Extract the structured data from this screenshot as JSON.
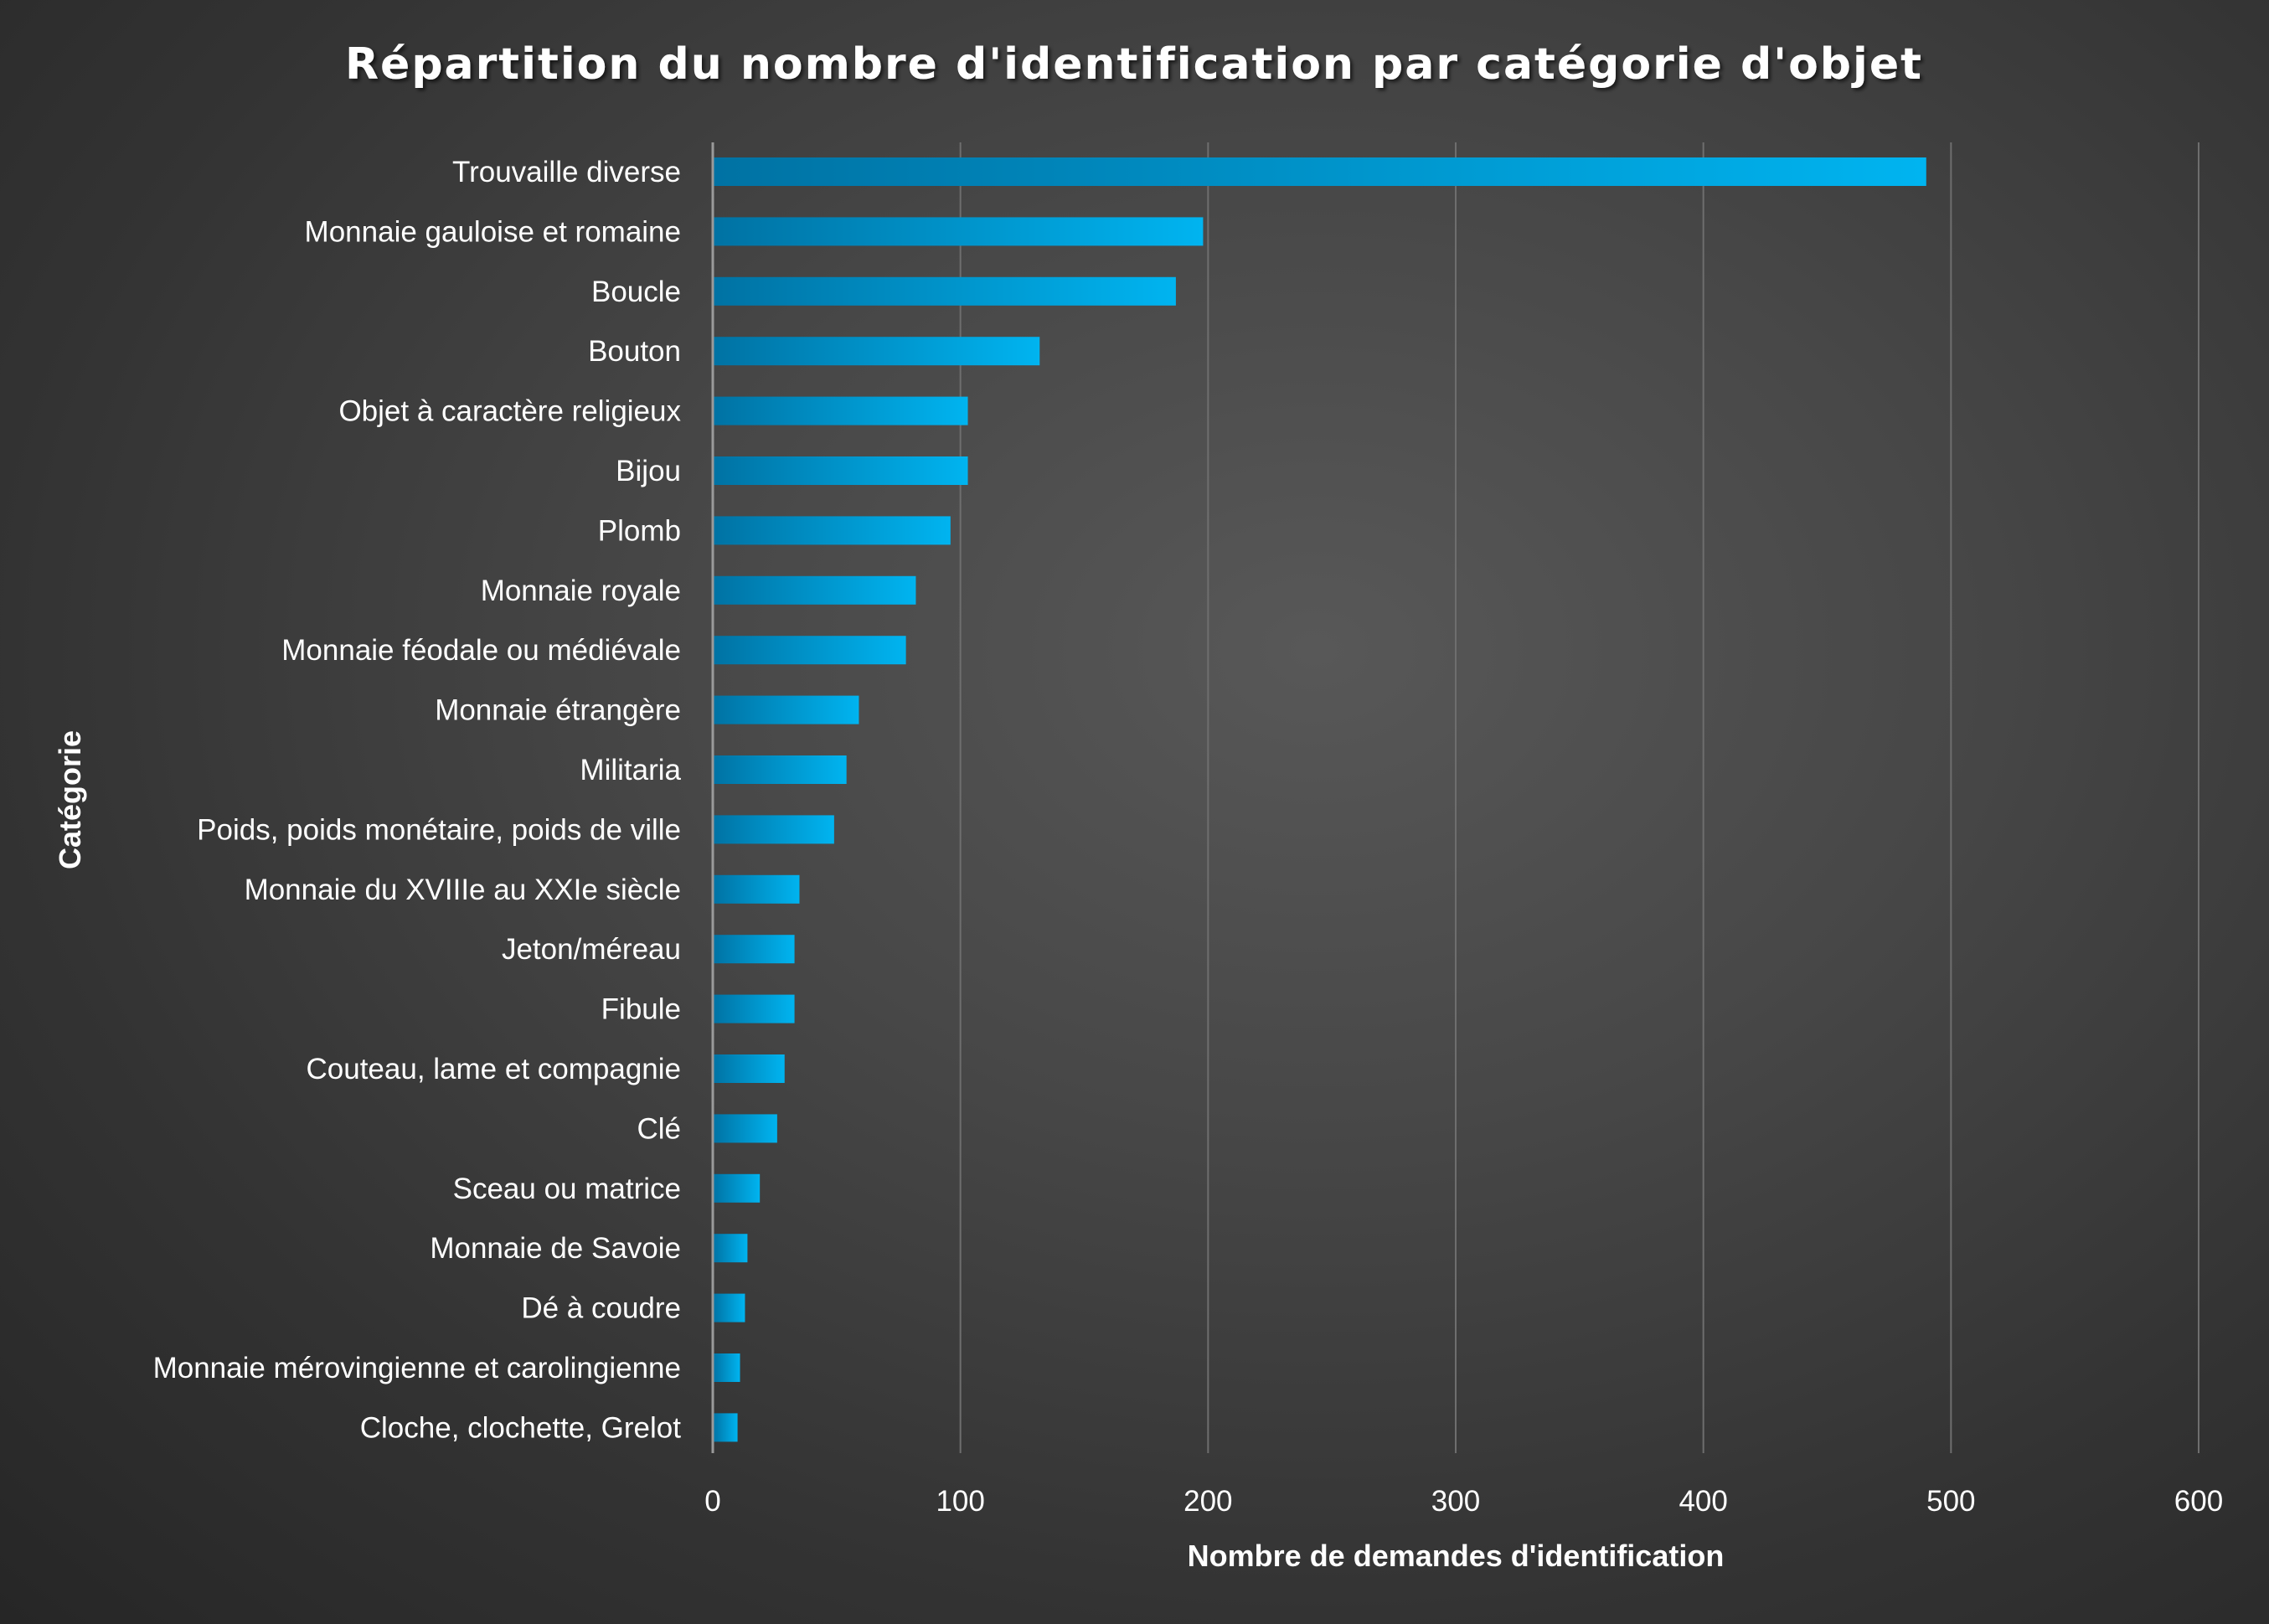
{
  "chart_data": {
    "type": "bar",
    "orientation": "horizontal",
    "title": "Répartition du nombre d'identification par catégorie d'objet",
    "xlabel": "Nombre de demandes d'identification",
    "ylabel": "Catégorie",
    "xlim": [
      0,
      600
    ],
    "xticks": [
      0,
      100,
      200,
      300,
      400,
      500,
      600
    ],
    "grid": true,
    "legend": "none",
    "bar_color": "#00b4f0",
    "bar_color_dark": "#0072a3",
    "categories": [
      "Trouvaille diverse",
      "Monnaie gauloise et romaine",
      "Boucle",
      "Bouton",
      "Objet à caractère religieux",
      "Bijou",
      "Plomb",
      "Monnaie royale",
      "Monnaie féodale ou médiévale",
      "Monnaie étrangère",
      "Militaria",
      "Poids, poids monétaire, poids de ville",
      "Monnaie du XVIIIe au XXIe siècle",
      "Jeton/méreau",
      "Fibule",
      "Couteau, lame et compagnie",
      "Clé",
      "Sceau ou matrice",
      "Monnaie de Savoie",
      "Dé à coudre",
      "Monnaie mérovingienne et carolingienne",
      "Cloche, clochette, Grelot"
    ],
    "values": [
      490,
      198,
      187,
      132,
      103,
      103,
      96,
      82,
      78,
      59,
      54,
      49,
      35,
      33,
      33,
      29,
      26,
      19,
      14,
      13,
      11,
      10
    ]
  }
}
